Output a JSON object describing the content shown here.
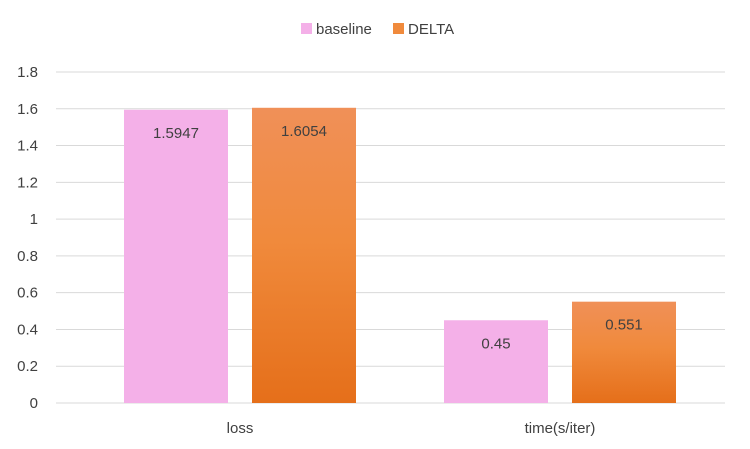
{
  "chart_data": {
    "type": "bar",
    "title": "",
    "xlabel": "",
    "ylabel": "",
    "categories": [
      "loss",
      "time(s/iter)"
    ],
    "series": [
      {
        "name": "baseline",
        "values": [
          1.5947,
          0.45
        ],
        "labels": [
          "1.5947",
          "0.45"
        ],
        "color": "#f4b0e8"
      },
      {
        "name": "DELTA",
        "values": [
          1.6054,
          0.551
        ],
        "labels": [
          "1.6054",
          "0.551"
        ],
        "color": "#f08a3c"
      }
    ],
    "ylim": [
      0,
      1.8
    ],
    "yticks": [
      "0",
      "0.2",
      "0.4",
      "0.6",
      "0.8",
      "1",
      "1.2",
      "1.4",
      "1.6",
      "1.8"
    ],
    "grid": true,
    "legend_position": "top"
  }
}
